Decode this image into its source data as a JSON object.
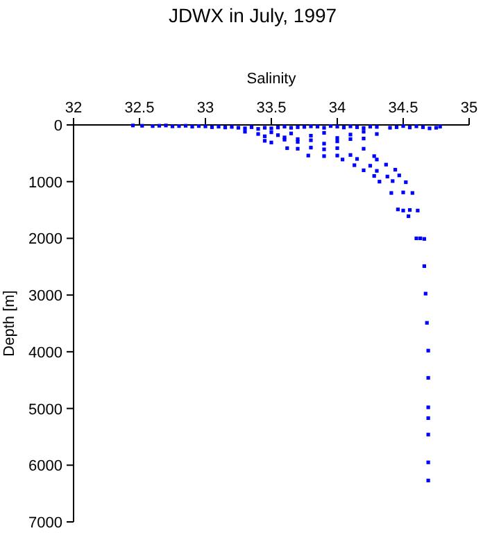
{
  "chart_data": {
    "type": "scatter",
    "title": "JDWX in July, 1997",
    "xlabel": "Salinity",
    "ylabel": "Depth [m]",
    "xlim": [
      32,
      35
    ],
    "ylim": [
      7000,
      0
    ],
    "xticks": [
      32,
      32.5,
      33,
      33.5,
      34,
      34.5,
      35
    ],
    "yticks": [
      0,
      1000,
      2000,
      3000,
      4000,
      5000,
      6000,
      7000
    ],
    "marker": "square",
    "grid": false,
    "series": [
      {
        "color": "#0000ff",
        "x": [
          32.45,
          32.52,
          32.6,
          32.65,
          32.7,
          32.75,
          32.8,
          32.85,
          32.9,
          32.95,
          33.0,
          33.05,
          33.1,
          33.15,
          33.2,
          33.25,
          33.3,
          33.35,
          33.4,
          33.45,
          33.5,
          33.55,
          33.6,
          33.65,
          33.7,
          33.75,
          33.8,
          33.85,
          33.9,
          33.95,
          34.0,
          34.05,
          34.1,
          34.15,
          34.2,
          34.25,
          34.3,
          34.4,
          34.45,
          34.5,
          34.55,
          34.6,
          34.65,
          34.7,
          34.75,
          34.78,
          33.3,
          33.4,
          33.45,
          33.5,
          33.55,
          33.6,
          33.65,
          33.7,
          33.8,
          33.9,
          34.0,
          34.1,
          34.2,
          34.3,
          33.45,
          33.5,
          33.6,
          33.7,
          33.8,
          33.9,
          34.0,
          34.1,
          34.2,
          33.62,
          33.7,
          33.8,
          33.9,
          34.0,
          34.2,
          33.78,
          33.9,
          34.0,
          34.1,
          34.28,
          34.04,
          34.15,
          34.3,
          34.13,
          34.25,
          34.37,
          34.2,
          34.3,
          34.44,
          34.28,
          34.38,
          34.47,
          34.32,
          34.42,
          34.52,
          34.41,
          34.5,
          34.57,
          34.46,
          34.5,
          34.55,
          34.61,
          34.54,
          34.6,
          34.63,
          34.66,
          34.66,
          34.67,
          34.68,
          34.69,
          34.69,
          34.69,
          34.69,
          34.69,
          34.69,
          34.69
        ],
        "values": [
          10,
          15,
          20,
          15,
          10,
          25,
          20,
          15,
          30,
          20,
          25,
          40,
          30,
          45,
          35,
          50,
          60,
          40,
          70,
          50,
          60,
          45,
          30,
          50,
          40,
          35,
          25,
          30,
          50,
          20,
          30,
          45,
          25,
          40,
          55,
          30,
          35,
          50,
          40,
          20,
          45,
          25,
          40,
          60,
          50,
          30,
          120,
          160,
          200,
          130,
          180,
          220,
          150,
          250,
          190,
          140,
          230,
          170,
          120,
          160,
          280,
          310,
          260,
          300,
          270,
          330,
          290,
          250,
          240,
          410,
          420,
          400,
          430,
          410,
          420,
          540,
          550,
          540,
          530,
          550,
          610,
          600,
          610,
          710,
          720,
          700,
          800,
          810,
          790,
          900,
          910,
          890,
          1000,
          990,
          1010,
          1200,
          1190,
          1200,
          1490,
          1510,
          1500,
          1510,
          1610,
          2000,
          2000,
          2010,
          2490,
          2975,
          3490,
          3980,
          4460,
          4980,
          5170,
          5460,
          5950,
          6270
        ]
      }
    ]
  }
}
